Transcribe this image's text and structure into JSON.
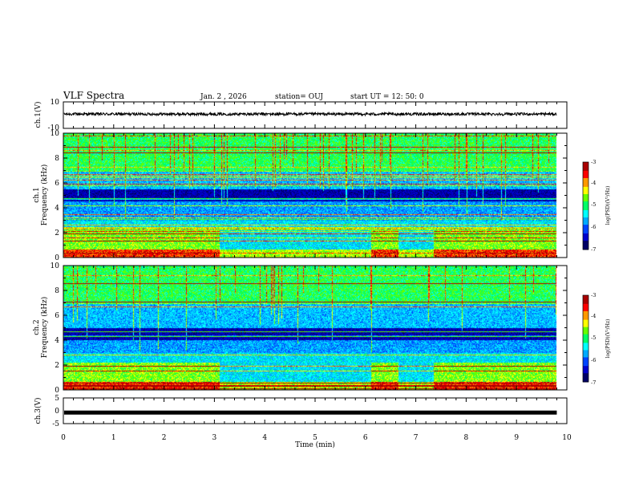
{
  "header": {
    "title": "VLF Spectra",
    "date": "Jan. 2 , 2026",
    "station": "station= OUJ",
    "start": "start  UT =   12: 50: 0"
  },
  "chart_data": [
    {
      "type": "line",
      "ylabel": "ch.1(V)",
      "ylim": [
        -10,
        10
      ],
      "yticks": [
        "10",
        "-10"
      ],
      "series": [
        {
          "level": 0.8,
          "noise": 0.35
        }
      ]
    },
    {
      "type": "heatmap",
      "ylabel_top": "ch.1",
      "ylabel": "Frequency (kHz)",
      "ylim": [
        0,
        10
      ],
      "yticks": [
        "0",
        "2",
        "4",
        "6",
        "8",
        "10"
      ],
      "colorbar": {
        "label": "log(PSD)(V²/Hz)",
        "ticks": [
          "-3",
          "-4",
          "-5",
          "-6",
          "-7"
        ],
        "range": [
          -7,
          -3
        ]
      },
      "bright_intervals_min": [
        [
          0,
          3.1
        ],
        [
          6.1,
          6.65
        ],
        [
          7.35,
          9.8
        ]
      ],
      "dark_band_khz": [
        4.5,
        5.5
      ]
    },
    {
      "type": "heatmap",
      "ylabel_top": "ch.2",
      "ylabel": "Frequency (kHz)",
      "ylim": [
        0,
        10
      ],
      "yticks": [
        "0",
        "2",
        "4",
        "6",
        "8",
        "10"
      ],
      "colorbar": {
        "label": "log(PSD)(V²/Hz)",
        "ticks": [
          "-3",
          "-4",
          "-5",
          "-6",
          "-7"
        ],
        "range": [
          -7,
          -3
        ]
      },
      "bright_intervals_min": [
        [
          0,
          3.1
        ],
        [
          6.1,
          6.65
        ],
        [
          7.35,
          9.8
        ]
      ],
      "dark_band_khz": [
        4.0,
        5.0
      ]
    },
    {
      "type": "line",
      "ylabel": "ch.3(V)",
      "ylim": [
        -5,
        5
      ],
      "yticks": [
        "5",
        "0",
        "-5"
      ],
      "series": [
        {
          "level": -0.7,
          "noise": 0
        }
      ]
    }
  ],
  "xaxis": {
    "label": "Time (min)",
    "range": [
      0,
      10
    ],
    "ticks": [
      "0",
      "1",
      "2",
      "3",
      "4",
      "5",
      "6",
      "7",
      "8",
      "9",
      "10"
    ],
    "data_end": 9.8
  },
  "colors": {
    "colormap": [
      "#000066",
      "#0000cc",
      "#0044ff",
      "#00aaff",
      "#00ffff",
      "#00ff66",
      "#66ff00",
      "#ffff00",
      "#ff9900",
      "#ff0000",
      "#aa0000"
    ]
  }
}
